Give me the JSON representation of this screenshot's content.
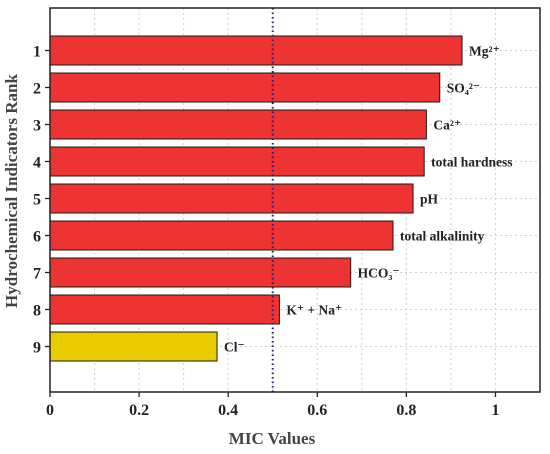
{
  "chart_data": {
    "type": "bar",
    "orientation": "horizontal",
    "xlabel": "MIC Values",
    "ylabel": "Hydrochemical Indicators Rank",
    "xlim": [
      0,
      1.1
    ],
    "x_ticks": [
      0,
      0.2,
      0.4,
      0.6,
      0.8,
      1
    ],
    "x_tick_labels": [
      "0",
      "0.2",
      "0.4",
      "0.6",
      "0.8",
      "1"
    ],
    "grid": true,
    "threshold_line": {
      "value": 0.5,
      "style": "dotted",
      "color": "#1f1f7a"
    },
    "bars": [
      {
        "rank": "1",
        "label": "Mg²⁺",
        "value": 0.925,
        "color": "#ee3333"
      },
      {
        "rank": "2",
        "label": "SO₄²⁻",
        "value": 0.875,
        "color": "#ee3333"
      },
      {
        "rank": "3",
        "label": "Ca²⁺",
        "value": 0.845,
        "color": "#ee3333"
      },
      {
        "rank": "4",
        "label": "total hardness",
        "value": 0.84,
        "color": "#ee3333"
      },
      {
        "rank": "5",
        "label": "pH",
        "value": 0.815,
        "color": "#ee3333"
      },
      {
        "rank": "6",
        "label": "total alkalinity",
        "value": 0.77,
        "color": "#ee3333"
      },
      {
        "rank": "7",
        "label": "HCO₃⁻",
        "value": 0.675,
        "color": "#ee3333"
      },
      {
        "rank": "8",
        "label": "K⁺ + Na⁺",
        "value": 0.515,
        "color": "#ee3333"
      },
      {
        "rank": "9",
        "label": "Cl⁻",
        "value": 0.375,
        "color": "#e8cc00"
      }
    ]
  }
}
